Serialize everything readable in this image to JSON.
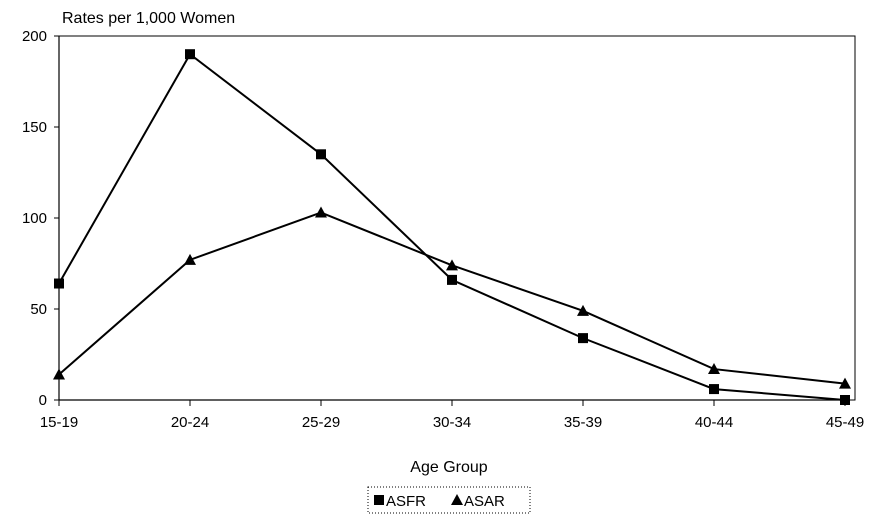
{
  "chart_data": {
    "type": "line",
    "ylabel": "Rates per 1,000 Women",
    "xlabel": "Age Group",
    "categories": [
      "15-19",
      "20-24",
      "25-29",
      "30-34",
      "35-39",
      "40-44",
      "45-49"
    ],
    "ylim": [
      0,
      200
    ],
    "yticks": [
      0,
      50,
      100,
      150,
      200
    ],
    "grid": false,
    "legend_position": "bottom",
    "series": [
      {
        "name": "ASFR",
        "marker": "square",
        "color": "#000000",
        "values": [
          64,
          190,
          135,
          66,
          34,
          6,
          0
        ]
      },
      {
        "name": "ASAR",
        "marker": "triangle",
        "color": "#000000",
        "values": [
          14,
          77,
          103,
          74,
          49,
          17,
          9
        ]
      }
    ]
  }
}
